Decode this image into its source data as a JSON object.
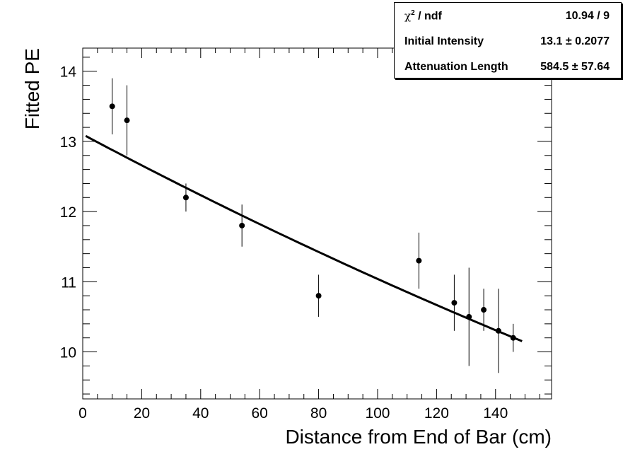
{
  "chart_data": {
    "type": "scatter",
    "xlabel": "Distance from End of Bar (cm)",
    "ylabel": "Fitted PE",
    "xlim": [
      0,
      159
    ],
    "ylim": [
      9.33,
      14.33
    ],
    "xticks": [
      0,
      20,
      40,
      60,
      80,
      100,
      120,
      140
    ],
    "yticks": [
      10,
      11,
      12,
      13,
      14
    ],
    "grid": false,
    "points": [
      {
        "x": 10,
        "y": 13.5,
        "err": 0.4
      },
      {
        "x": 15,
        "y": 13.3,
        "err": 0.5
      },
      {
        "x": 35,
        "y": 12.2,
        "err": 0.2
      },
      {
        "x": 54,
        "y": 11.8,
        "err": 0.3
      },
      {
        "x": 80,
        "y": 10.8,
        "err": 0.3
      },
      {
        "x": 114,
        "y": 11.3,
        "err": 0.4
      },
      {
        "x": 126,
        "y": 10.7,
        "err": 0.4
      },
      {
        "x": 131,
        "y": 10.5,
        "err": 0.7
      },
      {
        "x": 136,
        "y": 10.6,
        "err": 0.3
      },
      {
        "x": 141,
        "y": 10.3,
        "err": 0.6
      },
      {
        "x": 146,
        "y": 10.2,
        "err": 0.2
      }
    ],
    "fit": {
      "type": "exponential",
      "x_range": [
        1,
        149
      ],
      "initial_intensity": 13.1,
      "attenuation_length": 584.5
    }
  },
  "stats": {
    "chi2_label": "χ",
    "chi2_sup": "2",
    "chi2_suffix": " / ndf",
    "chi2_value": "10.94 / 9",
    "intensity_label": "Initial Intensity",
    "intensity_value": "13.1 ± 0.2077",
    "length_label": "Attenuation Length",
    "length_value": "584.5 ± 57.64"
  }
}
